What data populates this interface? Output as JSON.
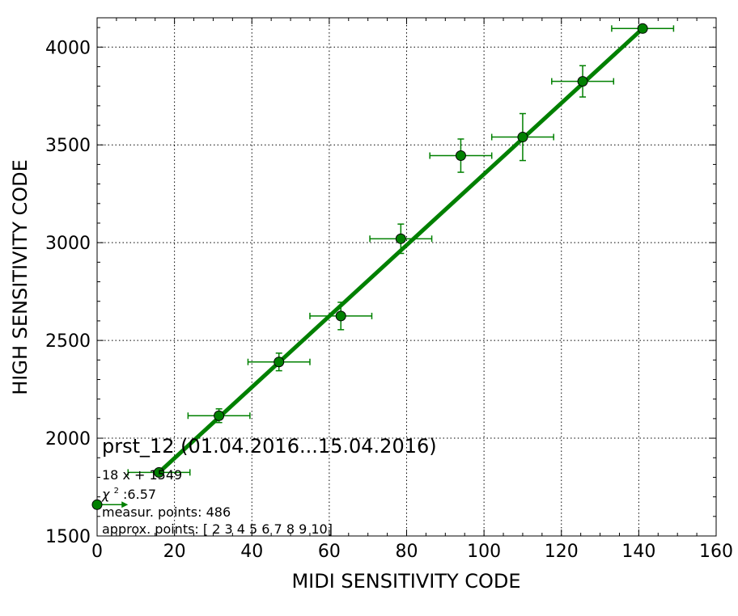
{
  "chart_data": {
    "type": "scatter",
    "xlabel": "MIDI SENSITIVITY CODE",
    "ylabel": "HIGH SENSITIVITY CODE",
    "xlim": [
      0,
      160
    ],
    "ylim": [
      1500,
      4150
    ],
    "xticks": [
      0,
      20,
      40,
      60,
      80,
      100,
      120,
      140,
      160
    ],
    "yticks": [
      1500,
      2000,
      2500,
      3000,
      3500,
      4000
    ],
    "grid": true,
    "colors": {
      "series": "#008000",
      "marker_edge": "#000000",
      "grid": "#000000",
      "axes": "#000000"
    },
    "series": [
      {
        "type": "errorbar",
        "points": [
          {
            "x": 0,
            "y": 1660,
            "xerr": 8,
            "yerr": 0,
            "arrow": "right"
          },
          {
            "x": 16,
            "y": 1825,
            "xerr": 8,
            "yerr": 0
          },
          {
            "x": 31.5,
            "y": 2115,
            "xerr": 8,
            "yerr": 35
          },
          {
            "x": 47,
            "y": 2390,
            "xerr": 8,
            "yerr": 45
          },
          {
            "x": 63,
            "y": 2625,
            "xerr": 8,
            "yerr": 70
          },
          {
            "x": 78.5,
            "y": 3020,
            "xerr": 8,
            "yerr": 75
          },
          {
            "x": 94,
            "y": 3445,
            "xerr": 8,
            "yerr": 85
          },
          {
            "x": 110,
            "y": 3540,
            "xerr": 8,
            "yerr": 120
          },
          {
            "x": 125.5,
            "y": 3825,
            "xerr": 8,
            "yerr": 80
          },
          {
            "x": 141,
            "y": 4095,
            "xerr": 8,
            "yerr": 0
          }
        ]
      },
      {
        "type": "line",
        "x": [
          16,
          141
        ],
        "y": [
          1825,
          4095
        ]
      }
    ],
    "annotations": {
      "title": "prst_12 (01.04.2016...15.04.2016)",
      "fit": "18 x + 1549",
      "chi_symbol": "χ",
      "chi_sup": "2",
      "chi_value": " :6.57",
      "measur": "measur. points: 486",
      "approx": "approx. points: [ 2  3  4  5  6  7  8  9 10]"
    }
  }
}
